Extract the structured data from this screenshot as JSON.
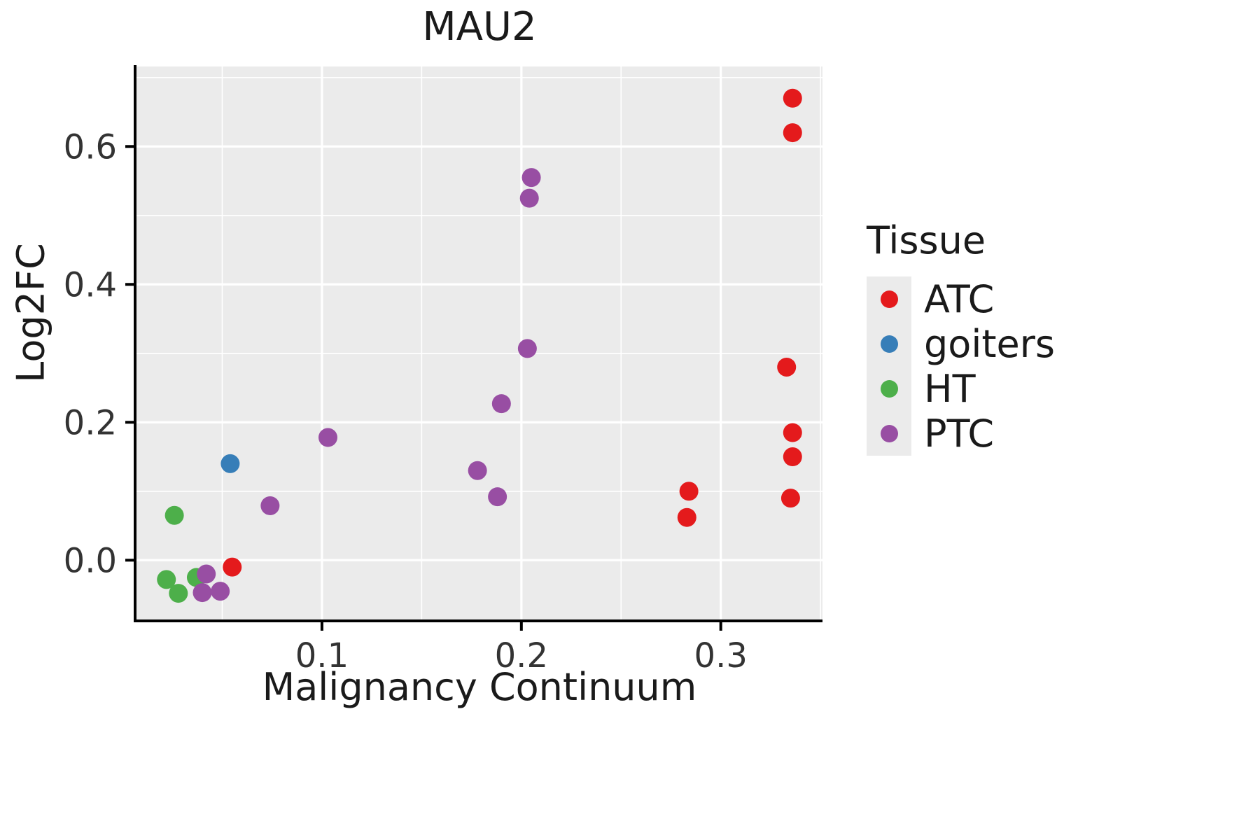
{
  "title": "MAU2",
  "axes": {
    "x_label": "Malignancy Continuum",
    "y_label": "Log2FC"
  },
  "legend": {
    "title": "Tissue",
    "entries": [
      {
        "label": "ATC",
        "color": "#e41a1c"
      },
      {
        "label": "goiters",
        "color": "#377eb8"
      },
      {
        "label": "HT",
        "color": "#4daf4a"
      },
      {
        "label": "PTC",
        "color": "#984ea3"
      }
    ]
  },
  "chart_data": {
    "type": "scatter",
    "title": "MAU2",
    "xlabel": "Malignancy Continuum",
    "ylabel": "Log2FC",
    "xlim": [
      0.007,
      0.351
    ],
    "ylim": [
      -0.086,
      0.716
    ],
    "xticks": [
      0.1,
      0.2,
      0.3
    ],
    "xtick_labels": [
      "0.1",
      "0.2",
      "0.3"
    ],
    "yticks": [
      0.0,
      0.2,
      0.4,
      0.6
    ],
    "ytick_labels": [
      "0.0",
      "0.2",
      "0.4",
      "0.6"
    ],
    "x_minor": [
      0.05,
      0.15,
      0.25,
      0.35
    ],
    "y_minor": [
      0.1,
      0.3,
      0.5,
      0.7
    ],
    "grid": true,
    "panel_bg": "#ebebeb",
    "grid_color": "#ffffff",
    "legend_position": "right",
    "series": [
      {
        "name": "ATC",
        "color": "#e41a1c",
        "points": [
          [
            0.336,
            0.67
          ],
          [
            0.336,
            0.62
          ],
          [
            0.333,
            0.28
          ],
          [
            0.336,
            0.185
          ],
          [
            0.336,
            0.15
          ],
          [
            0.335,
            0.09
          ],
          [
            0.284,
            0.1
          ],
          [
            0.283,
            0.062
          ],
          [
            0.055,
            -0.01
          ]
        ]
      },
      {
        "name": "goiters",
        "color": "#377eb8",
        "points": [
          [
            0.054,
            0.14
          ]
        ]
      },
      {
        "name": "HT",
        "color": "#4daf4a",
        "points": [
          [
            0.026,
            0.065
          ],
          [
            0.022,
            -0.028
          ],
          [
            0.028,
            -0.048
          ],
          [
            0.037,
            -0.025
          ]
        ]
      },
      {
        "name": "PTC",
        "color": "#984ea3",
        "points": [
          [
            0.205,
            0.555
          ],
          [
            0.204,
            0.525
          ],
          [
            0.203,
            0.307
          ],
          [
            0.19,
            0.227
          ],
          [
            0.178,
            0.13
          ],
          [
            0.188,
            0.092
          ],
          [
            0.103,
            0.178
          ],
          [
            0.074,
            0.079
          ],
          [
            0.042,
            -0.02
          ],
          [
            0.04,
            -0.047
          ],
          [
            0.049,
            -0.045
          ]
        ]
      }
    ]
  }
}
